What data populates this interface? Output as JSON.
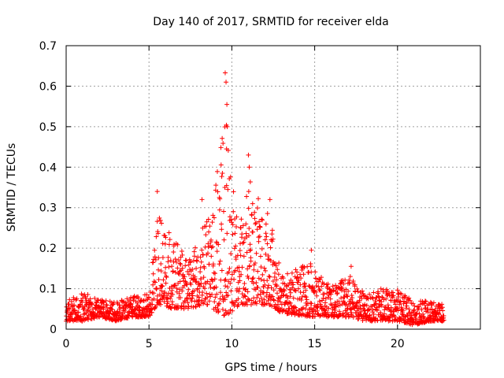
{
  "chart_data": {
    "type": "scatter",
    "title": "Day 140 of 2017, SRMTID for receiver elda",
    "xlabel": "GPS time / hours",
    "ylabel": "SRMTID / TECUs",
    "xlim": [
      0,
      25
    ],
    "ylim": [
      0,
      0.7
    ],
    "x_ticks": [
      0,
      5,
      10,
      15,
      20
    ],
    "x_tick_labels": [
      "0",
      "5",
      "10",
      "15",
      "20"
    ],
    "y_ticks": [
      0,
      0.1,
      0.2,
      0.3,
      0.4,
      0.5,
      0.6,
      0.7
    ],
    "y_tick_labels": [
      "0",
      "0.1",
      "0.2",
      "0.3",
      "0.4",
      "0.5",
      "0.6",
      "0.7"
    ],
    "grid": true,
    "marker": "+",
    "series": [
      {
        "name": "SRMTID",
        "color": "#ff0000",
        "data_coverage": [
          0,
          22.8
        ],
        "envelope": [
          {
            "x": 0.0,
            "min": 0.02,
            "max": 0.08
          },
          {
            "x": 1.0,
            "min": 0.02,
            "max": 0.11
          },
          {
            "x": 2.0,
            "min": 0.03,
            "max": 0.08
          },
          {
            "x": 3.0,
            "min": 0.02,
            "max": 0.08
          },
          {
            "x": 4.0,
            "min": 0.03,
            "max": 0.09
          },
          {
            "x": 5.0,
            "min": 0.03,
            "max": 0.1
          },
          {
            "x": 5.5,
            "min": 0.06,
            "max": 0.33
          },
          {
            "x": 6.5,
            "min": 0.05,
            "max": 0.25
          },
          {
            "x": 7.5,
            "min": 0.05,
            "max": 0.2
          },
          {
            "x": 8.5,
            "min": 0.06,
            "max": 0.32
          },
          {
            "x": 9.6,
            "min": 0.03,
            "max": 0.63
          },
          {
            "x": 10.5,
            "min": 0.06,
            "max": 0.3
          },
          {
            "x": 11.0,
            "min": 0.06,
            "max": 0.43
          },
          {
            "x": 12.3,
            "min": 0.06,
            "max": 0.32
          },
          {
            "x": 13.0,
            "min": 0.04,
            "max": 0.15
          },
          {
            "x": 14.8,
            "min": 0.03,
            "max": 0.19
          },
          {
            "x": 16.0,
            "min": 0.03,
            "max": 0.12
          },
          {
            "x": 17.2,
            "min": 0.03,
            "max": 0.15
          },
          {
            "x": 18.0,
            "min": 0.02,
            "max": 0.1
          },
          {
            "x": 19.0,
            "min": 0.02,
            "max": 0.12
          },
          {
            "x": 20.0,
            "min": 0.02,
            "max": 0.11
          },
          {
            "x": 21.0,
            "min": 0.01,
            "max": 0.08
          },
          {
            "x": 22.0,
            "min": 0.02,
            "max": 0.08
          },
          {
            "x": 22.8,
            "min": 0.02,
            "max": 0.07
          }
        ],
        "spikes": [
          {
            "x": 5.5,
            "y": 0.34
          },
          {
            "x": 8.2,
            "y": 0.32
          },
          {
            "x": 9.6,
            "y": 0.633
          },
          {
            "x": 9.65,
            "y": 0.61
          },
          {
            "x": 9.7,
            "y": 0.555
          },
          {
            "x": 9.72,
            "y": 0.5
          },
          {
            "x": 9.68,
            "y": 0.445
          },
          {
            "x": 9.58,
            "y": 0.35
          },
          {
            "x": 11.0,
            "y": 0.43
          },
          {
            "x": 11.05,
            "y": 0.4
          },
          {
            "x": 11.02,
            "y": 0.34
          },
          {
            "x": 12.3,
            "y": 0.32
          },
          {
            "x": 14.8,
            "y": 0.195
          },
          {
            "x": 17.2,
            "y": 0.155
          }
        ]
      }
    ]
  }
}
